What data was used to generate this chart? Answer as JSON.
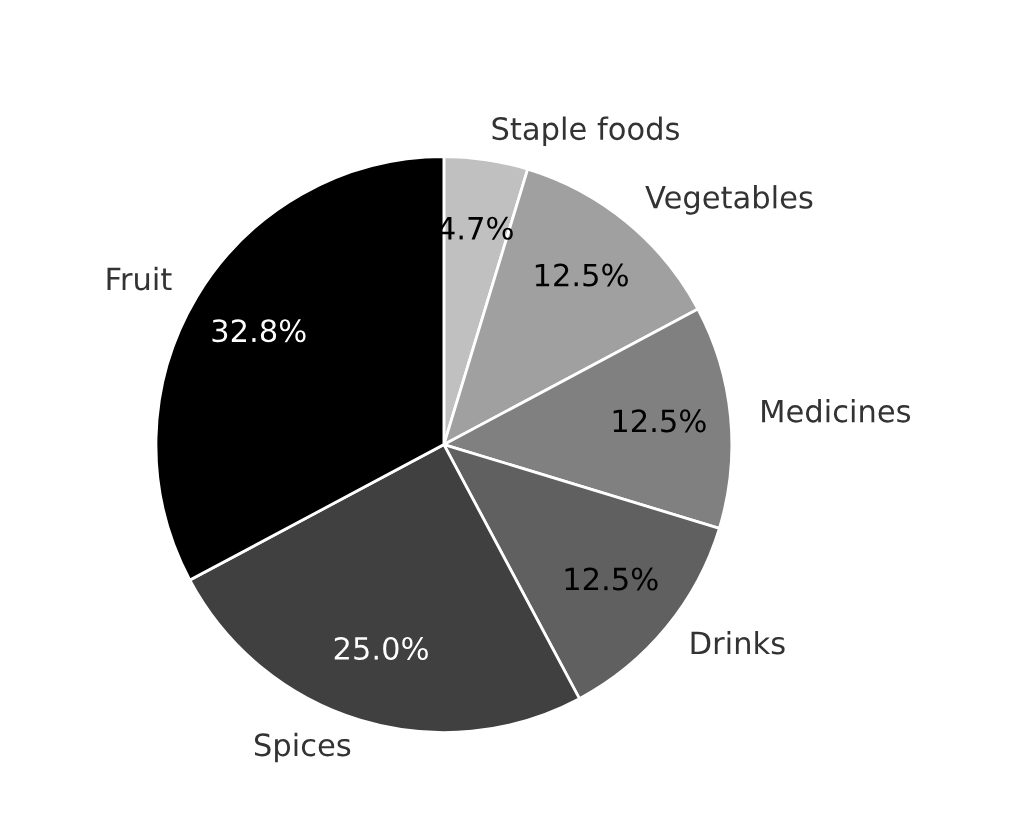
{
  "chart_data": {
    "type": "pie",
    "categories": [
      "Staple foods",
      "Vegetables",
      "Medicines",
      "Drinks",
      "Spices",
      "Fruit"
    ],
    "values": [
      4.7,
      12.5,
      12.5,
      12.5,
      25.0,
      32.8
    ],
    "value_labels": [
      "4.7%",
      "12.5%",
      "12.5%",
      "12.5%",
      "25.0%",
      "32.8%"
    ],
    "colors": [
      "#c0c0c0",
      "#a0a0a0",
      "#808080",
      "#606060",
      "#404040",
      "#000000"
    ]
  }
}
